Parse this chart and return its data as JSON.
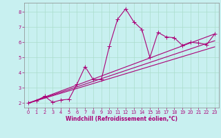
{
  "xlabel": "Windchill (Refroidissement éolien,°C)",
  "bg_color": "#c8f0f0",
  "line_color": "#aa0077",
  "grid_color": "#aaddcc",
  "spine_color": "#888888",
  "xlim": [
    -0.5,
    23.5
  ],
  "ylim": [
    1.7,
    8.6
  ],
  "x_ticks": [
    0,
    1,
    2,
    3,
    4,
    5,
    6,
    7,
    8,
    9,
    10,
    11,
    12,
    13,
    14,
    15,
    16,
    17,
    18,
    19,
    20,
    21,
    22,
    23
  ],
  "y_ticks": [
    2,
    3,
    4,
    5,
    6,
    7,
    8
  ],
  "series1_x": [
    0,
    1,
    2,
    3,
    4,
    5,
    6,
    7,
    8,
    9,
    10,
    11,
    12,
    13,
    14,
    15,
    16,
    17,
    18,
    19,
    20,
    21,
    22,
    23
  ],
  "series1_y": [
    2.0,
    2.15,
    2.45,
    2.05,
    2.2,
    2.25,
    3.25,
    4.4,
    3.55,
    3.55,
    5.75,
    7.5,
    8.2,
    7.35,
    6.85,
    5.0,
    6.65,
    6.35,
    6.3,
    5.8,
    6.0,
    5.95,
    5.85,
    6.55
  ],
  "series2_x": [
    0,
    23
  ],
  "series2_y": [
    2.0,
    6.55
  ],
  "series3_x": [
    0,
    23
  ],
  "series3_y": [
    2.0,
    6.1
  ],
  "series4_x": [
    0,
    23
  ],
  "series4_y": [
    2.0,
    5.7
  ],
  "markersize": 2.5,
  "linewidth": 0.8,
  "tick_fontsize": 4.8,
  "xlabel_fontsize": 5.5
}
